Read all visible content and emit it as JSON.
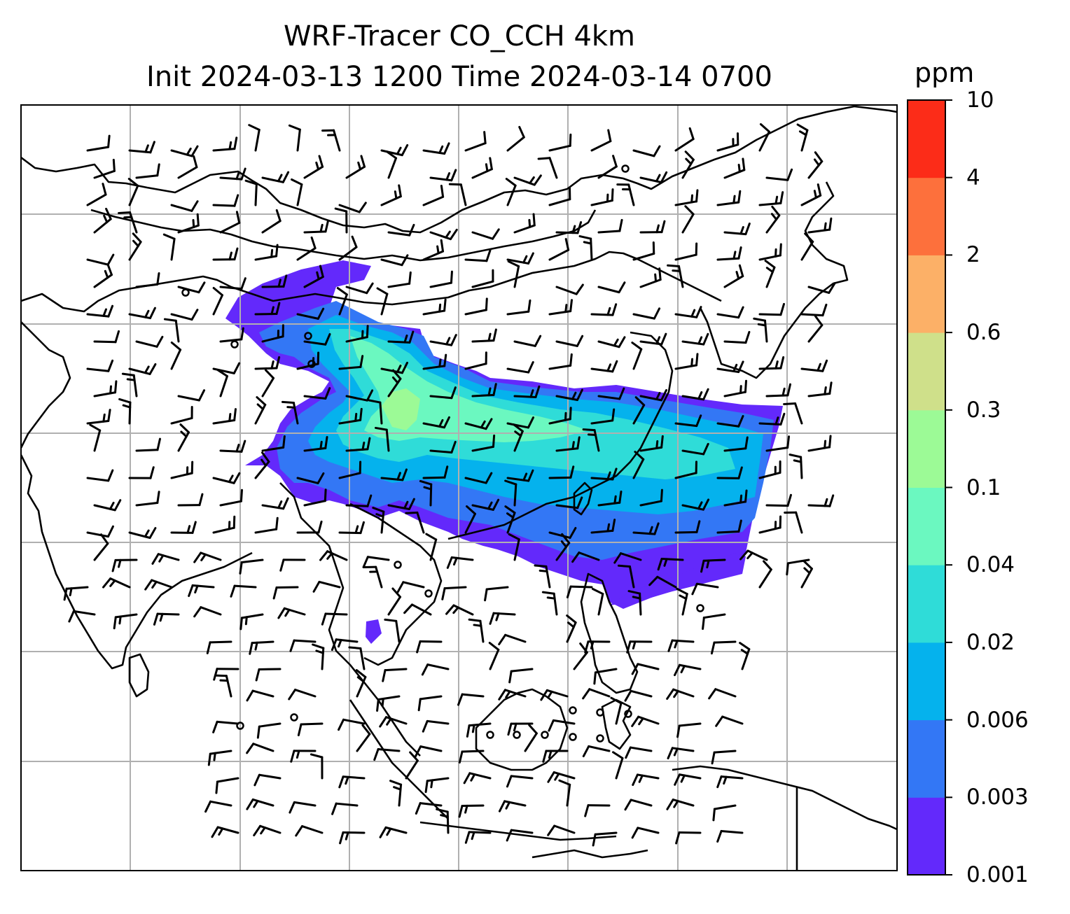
{
  "title": {
    "line1": "WRF-Tracer CO_CCH 4km",
    "line2": "Init 2024-03-13 1200 Time 2024-03-14 0700"
  },
  "colorbar": {
    "unit": "ppm",
    "levels": [
      "0.001",
      "0.003",
      "0.006",
      "0.02",
      "0.04",
      "0.1",
      "0.3",
      "0.6",
      "2",
      "4",
      "10"
    ],
    "colors": [
      "#6329fb",
      "#3377f5",
      "#05b2ed",
      "#2fdcd8",
      "#6bf8c0",
      "#9cfa96",
      "#cfe08a",
      "#fcb067",
      "#fd703c",
      "#fc2c18"
    ]
  },
  "map": {
    "gridlines": true,
    "plume_colors": {
      "outer": "#6329fb",
      "low": "#3377f5",
      "mid": "#05b2ed",
      "core": "#2fdcd8",
      "inner": "#6bf8c0",
      "peak": "#9cfa96"
    }
  }
}
